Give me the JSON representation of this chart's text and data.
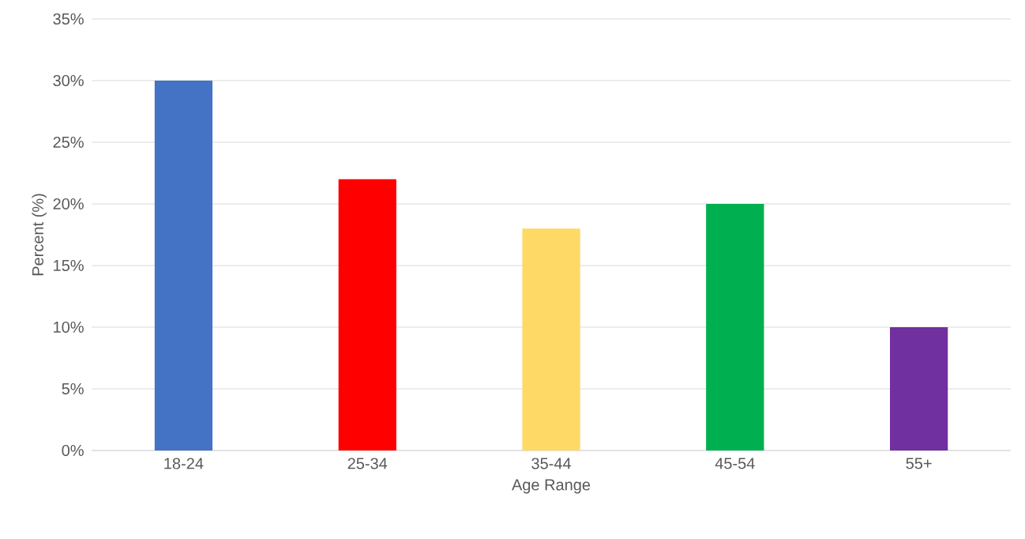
{
  "chart_data": {
    "type": "bar",
    "xlabel": "Age Range",
    "ylabel": "Percent (%)",
    "categories": [
      "18-24",
      "25-34",
      "35-44",
      "45-54",
      "55+"
    ],
    "values": [
      30,
      22,
      18,
      20,
      10
    ],
    "colors": [
      "#4472c4",
      "#ff0000",
      "#ffd966",
      "#00b050",
      "#7030a0"
    ],
    "ylim": [
      0,
      35
    ],
    "yticks": [
      {
        "value": 0,
        "label": "0%"
      },
      {
        "value": 5,
        "label": "5%"
      },
      {
        "value": 10,
        "label": "10%"
      },
      {
        "value": 15,
        "label": "15%"
      },
      {
        "value": 20,
        "label": "20%"
      },
      {
        "value": 25,
        "label": "25%"
      },
      {
        "value": 30,
        "label": "30%"
      },
      {
        "value": 35,
        "label": "35%"
      }
    ],
    "grid": "y"
  }
}
